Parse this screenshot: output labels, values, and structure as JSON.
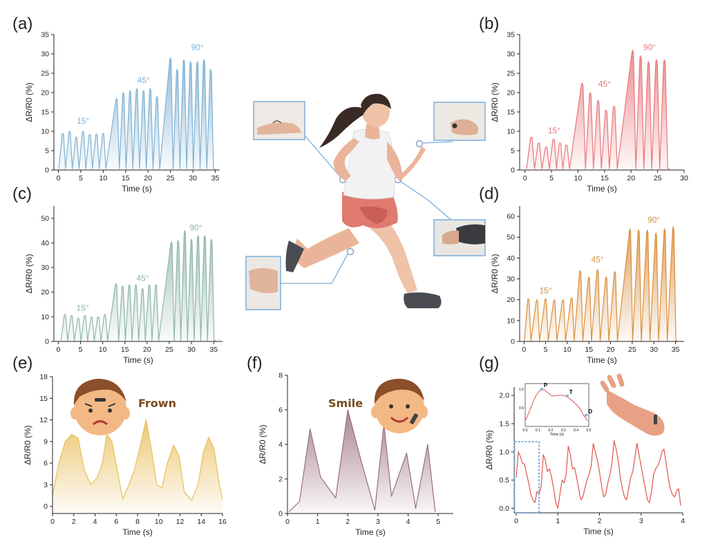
{
  "chart_data": [
    {
      "id": "a",
      "panel_label": "(a)",
      "type": "line",
      "xlabel": "Time (s)",
      "ylabel": "ΔR/R0 (%)",
      "xlim": [
        -1,
        36
      ],
      "ylim": [
        0,
        35
      ],
      "xticks": [
        0,
        5,
        10,
        15,
        20,
        25,
        30,
        35
      ],
      "yticks": [
        0,
        5,
        10,
        15,
        20,
        25,
        30,
        35
      ],
      "color": "#7fb1d3",
      "peaks": [
        {
          "t": 1,
          "v": 9.5
        },
        {
          "t": 2.5,
          "v": 10
        },
        {
          "t": 4,
          "v": 8.5
        },
        {
          "t": 5.5,
          "v": 10
        },
        {
          "t": 7,
          "v": 9.2
        },
        {
          "t": 8.5,
          "v": 9.3
        },
        {
          "t": 10,
          "v": 9.5
        },
        {
          "t": 13,
          "v": 18.5
        },
        {
          "t": 14.5,
          "v": 20
        },
        {
          "t": 16,
          "v": 20.5
        },
        {
          "t": 17.5,
          "v": 21
        },
        {
          "t": 19,
          "v": 20.5
        },
        {
          "t": 20.5,
          "v": 21
        },
        {
          "t": 22,
          "v": 19
        },
        {
          "t": 25,
          "v": 29
        },
        {
          "t": 26.5,
          "v": 26
        },
        {
          "t": 28,
          "v": 28.5
        },
        {
          "t": 29.5,
          "v": 28
        },
        {
          "t": 31,
          "v": 28
        },
        {
          "t": 32.5,
          "v": 28.5
        },
        {
          "t": 34,
          "v": 26
        }
      ],
      "annotations": [
        {
          "text": "15°",
          "x": 5.5,
          "y": 12
        },
        {
          "text": "45°",
          "x": 19,
          "y": 22.5
        },
        {
          "text": "90°",
          "x": 31,
          "y": 31
        }
      ]
    },
    {
      "id": "b",
      "panel_label": "(b)",
      "type": "line",
      "xlabel": "Time (s)",
      "ylabel": "ΔR/R0 (%)",
      "xlim": [
        -1,
        30
      ],
      "ylim": [
        0,
        35
      ],
      "xticks": [
        0,
        5,
        10,
        15,
        20,
        25,
        30
      ],
      "yticks": [
        0,
        5,
        10,
        15,
        20,
        25,
        30,
        35
      ],
      "color": "#e8787b",
      "peaks": [
        {
          "t": 1.2,
          "v": 8.5
        },
        {
          "t": 2.6,
          "v": 7
        },
        {
          "t": 4,
          "v": 6
        },
        {
          "t": 5.4,
          "v": 8
        },
        {
          "t": 6.6,
          "v": 7
        },
        {
          "t": 7.8,
          "v": 6.5
        },
        {
          "t": 10.8,
          "v": 22.5
        },
        {
          "t": 12.3,
          "v": 20
        },
        {
          "t": 13.8,
          "v": 18
        },
        {
          "t": 15.3,
          "v": 15.5
        },
        {
          "t": 16.8,
          "v": 16.5
        },
        {
          "t": 20.3,
          "v": 31
        },
        {
          "t": 21.8,
          "v": 29.5
        },
        {
          "t": 23.3,
          "v": 28
        },
        {
          "t": 24.8,
          "v": 28.5
        },
        {
          "t": 26.3,
          "v": 28.5
        }
      ],
      "annotations": [
        {
          "text": "15°",
          "x": 5.5,
          "y": 9.5
        },
        {
          "text": "45°",
          "x": 15,
          "y": 21.5
        },
        {
          "text": "90°",
          "x": 23.5,
          "y": 31
        }
      ]
    },
    {
      "id": "c",
      "panel_label": "(c)",
      "type": "line",
      "xlabel": "Time (s)",
      "ylabel": "ΔR/R0 (%)",
      "xlim": [
        -1,
        37
      ],
      "ylim": [
        0,
        55
      ],
      "xticks": [
        0,
        5,
        10,
        15,
        20,
        25,
        30,
        35
      ],
      "yticks": [
        0,
        10,
        20,
        30,
        40,
        50
      ],
      "color": "#8fb6ab",
      "peaks": [
        {
          "t": 1.5,
          "v": 11
        },
        {
          "t": 3,
          "v": 10.5
        },
        {
          "t": 4.5,
          "v": 9.5
        },
        {
          "t": 6,
          "v": 10.5
        },
        {
          "t": 7.5,
          "v": 10
        },
        {
          "t": 9,
          "v": 10
        },
        {
          "t": 10.5,
          "v": 11
        },
        {
          "t": 13,
          "v": 23.5
        },
        {
          "t": 14.5,
          "v": 22.5
        },
        {
          "t": 16,
          "v": 23
        },
        {
          "t": 17.5,
          "v": 23
        },
        {
          "t": 19,
          "v": 21.5
        },
        {
          "t": 20.5,
          "v": 23
        },
        {
          "t": 22,
          "v": 23
        },
        {
          "t": 25.5,
          "v": 40.5
        },
        {
          "t": 27,
          "v": 41
        },
        {
          "t": 28.5,
          "v": 45
        },
        {
          "t": 30,
          "v": 41.5
        },
        {
          "t": 31.5,
          "v": 43
        },
        {
          "t": 33,
          "v": 43
        },
        {
          "t": 34.5,
          "v": 41.5
        }
      ],
      "annotations": [
        {
          "text": "15°",
          "x": 5.5,
          "y": 12.5
        },
        {
          "text": "45°",
          "x": 19,
          "y": 24.5
        },
        {
          "text": "90°",
          "x": 31,
          "y": 45
        }
      ]
    },
    {
      "id": "d",
      "panel_label": "(d)",
      "type": "line",
      "xlabel": "Time (s)",
      "ylabel": "ΔR/R0 (%)",
      "xlim": [
        -1,
        37
      ],
      "ylim": [
        0,
        65
      ],
      "xticks": [
        0,
        5,
        10,
        15,
        20,
        25,
        30,
        35
      ],
      "yticks": [
        0,
        10,
        20,
        30,
        40,
        50,
        60
      ],
      "color": "#d9903f",
      "peaks": [
        {
          "t": 1,
          "v": 20.5
        },
        {
          "t": 3,
          "v": 20
        },
        {
          "t": 5,
          "v": 20.5
        },
        {
          "t": 7,
          "v": 20
        },
        {
          "t": 9,
          "v": 20
        },
        {
          "t": 11,
          "v": 21
        },
        {
          "t": 13,
          "v": 34
        },
        {
          "t": 15,
          "v": 31
        },
        {
          "t": 17,
          "v": 34.5
        },
        {
          "t": 19,
          "v": 31
        },
        {
          "t": 21,
          "v": 33.5
        },
        {
          "t": 24.5,
          "v": 54
        },
        {
          "t": 26.5,
          "v": 53.5
        },
        {
          "t": 28.5,
          "v": 53.5
        },
        {
          "t": 30.5,
          "v": 52
        },
        {
          "t": 32.5,
          "v": 54
        },
        {
          "t": 34.5,
          "v": 55
        }
      ],
      "annotations": [
        {
          "text": "15°",
          "x": 5,
          "y": 23
        },
        {
          "text": "45°",
          "x": 17,
          "y": 38
        },
        {
          "text": "90°",
          "x": 30,
          "y": 57
        }
      ]
    },
    {
      "id": "e",
      "panel_label": "(e)",
      "type": "area",
      "xlabel": "Time (s)",
      "ylabel": "ΔR/R0 (%)",
      "xlim": [
        0,
        16
      ],
      "ylim": [
        -1,
        18
      ],
      "xticks": [
        0,
        2,
        4,
        6,
        8,
        10,
        12,
        14,
        16
      ],
      "yticks": [
        0,
        3,
        6,
        9,
        12,
        15,
        18
      ],
      "color": "#e8be5a",
      "x": [
        0,
        0.6,
        1.2,
        1.8,
        2.4,
        3.0,
        3.6,
        4.2,
        4.7,
        5.1,
        5.6,
        6.1,
        6.6,
        7.2,
        7.7,
        8.2,
        8.8,
        9.3,
        9.8,
        10.3,
        10.8,
        11.4,
        11.9,
        12.4,
        13.1,
        13.7,
        14.2,
        14.7,
        15.2,
        15.7,
        16
      ],
      "y": [
        1.5,
        6,
        9,
        10,
        9.5,
        5,
        3,
        4,
        6,
        10,
        9,
        5,
        1,
        3,
        5,
        8,
        12,
        8,
        3,
        2.5,
        6,
        8.5,
        7,
        2,
        0.8,
        3,
        7.5,
        9.6,
        8,
        3,
        1
      ],
      "face_text": "Frown"
    },
    {
      "id": "f",
      "panel_label": "(f)",
      "type": "area",
      "xlabel": "Time (s)",
      "ylabel": "ΔR/R0 (%)",
      "xlim": [
        0,
        5.5
      ],
      "ylim": [
        0,
        8
      ],
      "xticks": [
        0,
        1,
        2,
        3,
        4,
        5
      ],
      "yticks": [
        0,
        2,
        4,
        6,
        8
      ],
      "color": "#9a6f7c",
      "x": [
        0.05,
        0.4,
        0.75,
        1.1,
        1.6,
        2.0,
        2.45,
        2.9,
        3.2,
        3.45,
        3.95,
        4.25,
        4.65,
        4.9
      ],
      "y": [
        0.1,
        0.7,
        4.9,
        2.1,
        0.9,
        6.0,
        3.0,
        0.2,
        5.2,
        1.0,
        3.5,
        0.3,
        4.0,
        0.1
      ],
      "face_text": "Smile"
    },
    {
      "id": "g",
      "panel_label": "(g)",
      "type": "line",
      "xlabel": "Time (s)",
      "ylabel": "ΔR/R0 (%)",
      "xlim": [
        -0.05,
        4
      ],
      "ylim": [
        -0.08,
        2.15
      ],
      "xticks": [
        0,
        1,
        2,
        3,
        4
      ],
      "yticks": [
        0.0,
        0.5,
        1.0,
        1.5,
        2.0
      ],
      "color": "#e0554c",
      "x": [
        0,
        0.05,
        0.1,
        0.15,
        0.2,
        0.25,
        0.3,
        0.35,
        0.4,
        0.45,
        0.5,
        0.55,
        0.6,
        0.65,
        0.7,
        0.75,
        0.8,
        0.85,
        0.9,
        0.95,
        1.0,
        1.05,
        1.1,
        1.15,
        1.2,
        1.25,
        1.3,
        1.35,
        1.4,
        1.45,
        1.5,
        1.55,
        1.6,
        1.65,
        1.7,
        1.75,
        1.8,
        1.85,
        1.9,
        1.95,
        2.0,
        2.05,
        2.1,
        2.15,
        2.2,
        2.25,
        2.3,
        2.35,
        2.4,
        2.45,
        2.5,
        2.55,
        2.6,
        2.65,
        2.7,
        2.75,
        2.8,
        2.85,
        2.9,
        2.95,
        3.0,
        3.05,
        3.1,
        3.15,
        3.2,
        3.25,
        3.3,
        3.35,
        3.4,
        3.45,
        3.5,
        3.55,
        3.6,
        3.65,
        3.7,
        3.75,
        3.8,
        3.85,
        3.9,
        3.95
      ],
      "y": [
        0.55,
        1.0,
        0.92,
        0.8,
        0.78,
        0.6,
        0.45,
        0.25,
        0.15,
        0.1,
        0.3,
        0.25,
        0.4,
        0.95,
        0.85,
        0.65,
        0.7,
        0.55,
        0.35,
        0.1,
        0.0,
        0.25,
        0.5,
        0.45,
        0.6,
        1.1,
        0.95,
        0.7,
        0.72,
        0.55,
        0.35,
        0.15,
        0.2,
        0.35,
        0.5,
        0.6,
        0.75,
        1.15,
        1.0,
        0.85,
        0.65,
        0.4,
        0.2,
        0.25,
        0.45,
        0.6,
        0.8,
        1.2,
        1.05,
        0.85,
        0.55,
        0.35,
        0.2,
        0.15,
        0.35,
        0.55,
        0.65,
        0.9,
        1.15,
        0.95,
        0.75,
        0.55,
        0.35,
        0.15,
        0.1,
        0.3,
        0.6,
        0.7,
        0.75,
        0.85,
        1.0,
        1.05,
        0.8,
        0.55,
        0.35,
        0.25,
        0.2,
        0.3,
        0.35,
        0.05
      ],
      "inset": {
        "xlabel": "Time (s)",
        "xlim": [
          0,
          0.5
        ],
        "ylim": [
          0,
          1.15
        ],
        "xticks": [
          0.0,
          0.1,
          0.2,
          0.3,
          0.4,
          0.5
        ],
        "yticks": [
          0.5,
          1.0
        ],
        "x": [
          0,
          0.02,
          0.05,
          0.08,
          0.11,
          0.13,
          0.15,
          0.18,
          0.21,
          0.24,
          0.27,
          0.3,
          0.33,
          0.36,
          0.4,
          0.43,
          0.46,
          0.49
        ],
        "y": [
          0.15,
          0.3,
          0.55,
          0.8,
          0.95,
          1.0,
          0.98,
          0.9,
          0.82,
          0.82,
          0.84,
          0.83,
          0.8,
          0.72,
          0.6,
          0.48,
          0.3,
          0.15
        ],
        "markers": [
          {
            "label": "P",
            "t": 0.13,
            "v": 1.0
          },
          {
            "label": "T",
            "t": 0.33,
            "v": 0.82
          },
          {
            "label": "D",
            "t": 0.48,
            "v": 0.3
          }
        ]
      },
      "highlight_box": {
        "x0": -0.04,
        "x1": 0.55,
        "y0": -0.08,
        "y1": 1.18
      }
    }
  ],
  "illustration": {
    "description_icons": [
      "runner-figure",
      "wrist-photo",
      "hand-photo",
      "elbow-photo",
      "knee-photo"
    ]
  }
}
